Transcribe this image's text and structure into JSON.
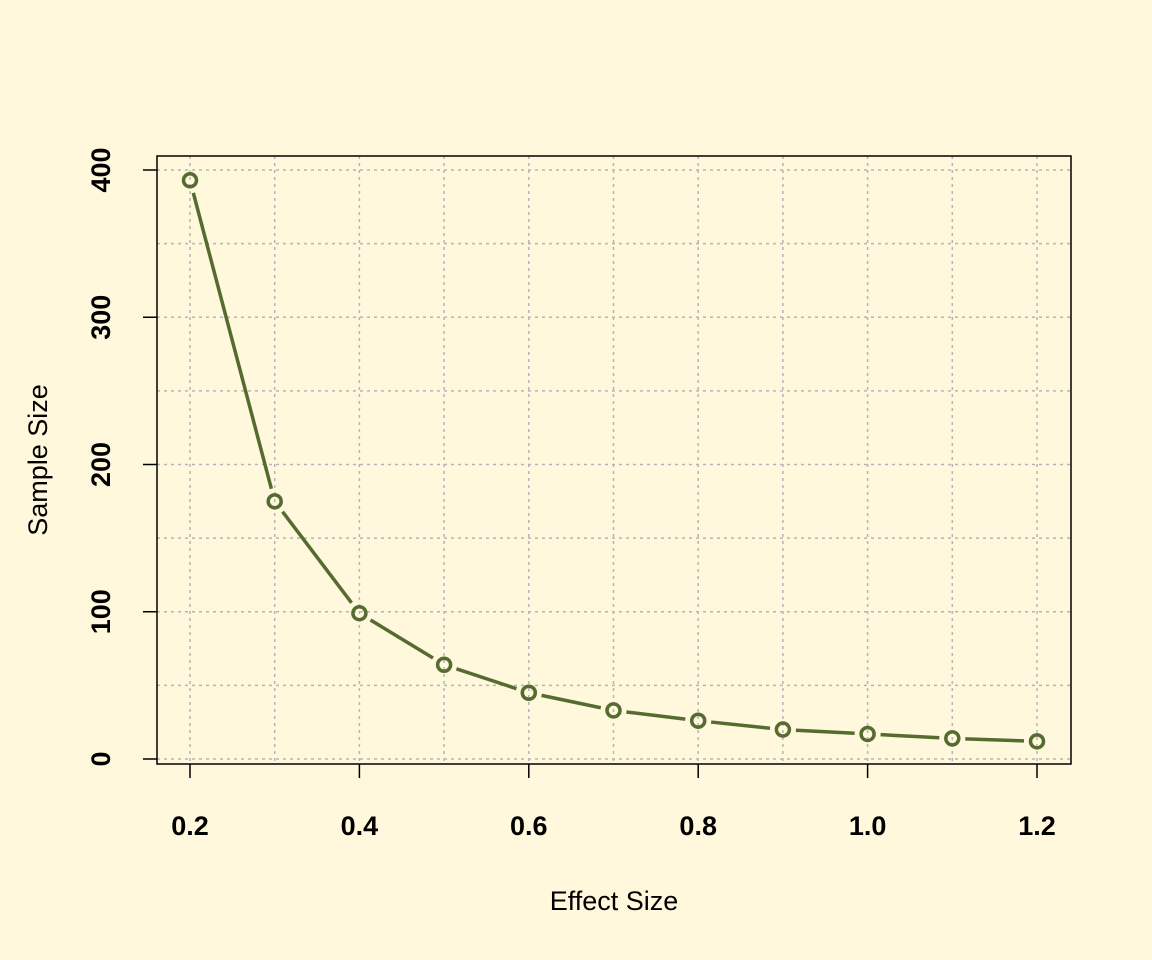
{
  "chart_data": {
    "type": "line",
    "title": "",
    "xlabel": "Effect Size",
    "ylabel": "Sample Size",
    "x": [
      0.2,
      0.3,
      0.4,
      0.5,
      0.6,
      0.7,
      0.8,
      0.9,
      1.0,
      1.1,
      1.2
    ],
    "series": [
      {
        "values": [
          393,
          175,
          99,
          64,
          45,
          33,
          26,
          20,
          17,
          14,
          12
        ]
      }
    ],
    "xlim": [
      0.2,
      1.2
    ],
    "ylim": [
      0,
      400
    ],
    "x_ticks": [
      0.2,
      0.4,
      0.6,
      0.8,
      1.0,
      1.2
    ],
    "x_tick_labels": [
      "0.2",
      "0.4",
      "0.6",
      "0.8",
      "1.0",
      "1.2"
    ],
    "y_ticks": [
      0,
      100,
      200,
      300,
      400
    ],
    "y_tick_labels": [
      "0",
      "100",
      "200",
      "300",
      "400"
    ],
    "x_grid": [
      0.2,
      0.3,
      0.4,
      0.5,
      0.6,
      0.7,
      0.8,
      0.9,
      1.0,
      1.1,
      1.2
    ],
    "y_grid": [
      0,
      50,
      100,
      150,
      200,
      250,
      300,
      350,
      400
    ],
    "grid": true,
    "legend": "none",
    "colors": {
      "background": "#FFF8DC",
      "line": "#556B2F",
      "grid": "#B5B5B5",
      "axis": "#000000"
    }
  }
}
